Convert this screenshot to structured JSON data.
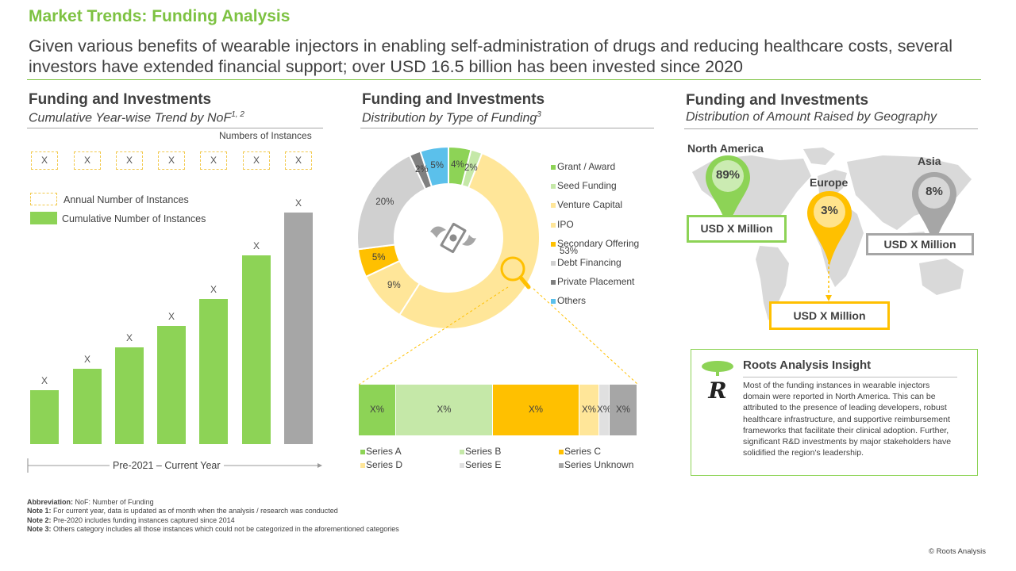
{
  "header": {
    "title": "Market Trends: Funding Analysis",
    "subtitle": "Given various benefits of wearable injectors in enabling self-administration of drugs and reducing healthcare costs, several investors have extended financial support; over USD 16.5 billion has been invested since 2020"
  },
  "left": {
    "heading": "Funding and Investments",
    "subheading": "Cumulative Year-wise Trend by NoF",
    "subheading_sup": "1, 2",
    "axis_note": "Numbers of Instances",
    "legend_annual": "Annual Number of Instances",
    "legend_cumulative": "Cumulative Number of Instances",
    "x_axis_label": "Pre-2021 – Current Year"
  },
  "middle": {
    "heading": "Funding and Investments",
    "subheading": "Distribution by Type of Funding",
    "subheading_sup": "3"
  },
  "right": {
    "heading": "Funding and Investments",
    "subheading": "Distribution of Amount Raised by Geography",
    "regions": [
      {
        "name": "North America",
        "percent": "89%",
        "amount": "USD X Million",
        "color": "#8dd356"
      },
      {
        "name": "Europe",
        "percent": "3%",
        "amount": "USD X Million",
        "color": "#ffc000"
      },
      {
        "name": "Asia",
        "percent": "8%",
        "amount": "USD X Million",
        "color": "#a6a6a6"
      }
    ]
  },
  "insight": {
    "title": "Roots Analysis Insight",
    "logo_letter": "R",
    "text": "Most of the funding instances in wearable injectors domain were reported in North America. This can be attributed to the presence of leading developers, robust healthcare infrastructure, and supportive reimbursement frameworks that facilitate their clinical adoption. Further, significant R&D investments by major stakeholders have solidified the region's leadership."
  },
  "notes": {
    "abbr_label": "Abbreviation:",
    "abbr_text": "NoF: Number of Funding",
    "n1_label": "Note 1:",
    "n1_text": "For current year, data is updated as of month when the analysis / research was conducted",
    "n2_label": "Note 2:",
    "n2_text": "Pre-2020 includes funding instances captured since 2014",
    "n3_label": "Note 3:",
    "n3_text": "Others category includes all those instances which could not be categorized in the aforementioned categories"
  },
  "copyright": "© Roots Analysis",
  "chart_data": [
    {
      "type": "bar",
      "categories": [
        "",
        "",
        "",
        "",
        "",
        "",
        ""
      ],
      "annual_labels": [
        "X",
        "X",
        "X",
        "X",
        "X",
        "X",
        "X"
      ],
      "value_labels": [
        "X",
        "X",
        "X",
        "X",
        "X",
        "X",
        "X"
      ],
      "values": [
        1.0,
        1.4,
        1.8,
        2.2,
        2.7,
        3.5,
        4.3
      ],
      "colors": [
        "#8dd356",
        "#8dd356",
        "#8dd356",
        "#8dd356",
        "#8dd356",
        "#8dd356",
        "#a6a6a6"
      ],
      "xlabel": "Pre-2021 – Current Year",
      "ylabel": "Numbers of Instances"
    },
    {
      "type": "pie",
      "labels": [
        "Grant / Award",
        "Seed Funding",
        "Venture Capital",
        "IPO",
        "Secondary Offering",
        "Debt Financing",
        "Private Placement",
        "Others"
      ],
      "values": [
        4,
        2,
        53,
        9,
        5,
        20,
        2,
        5
      ],
      "value_labels": [
        "4%",
        "2%",
        "53%",
        "9%",
        "5%",
        "20%",
        "2%",
        "5%"
      ],
      "colors": [
        "#8dd356",
        "#c5e8a8",
        "#ffe699",
        "#ffe699",
        "#ffc000",
        "#d0d0d0",
        "#808080",
        "#5bc0eb"
      ]
    },
    {
      "type": "bar",
      "orientation": "stacked-horizontal",
      "series": [
        {
          "name": "Series A",
          "value_label": "X%",
          "color": "#8dd356"
        },
        {
          "name": "Series B",
          "value_label": "X%",
          "color": "#c5e8a8"
        },
        {
          "name": "Series C",
          "value_label": "X%",
          "color": "#ffc000"
        },
        {
          "name": "Series D",
          "value_label": "X%",
          "color": "#ffe699"
        },
        {
          "name": "Series E",
          "value_label": "X%",
          "color": "#e0e0e0"
        },
        {
          "name": "Series Unknown",
          "value_label": "X%",
          "color": "#a6a6a6"
        }
      ]
    }
  ]
}
